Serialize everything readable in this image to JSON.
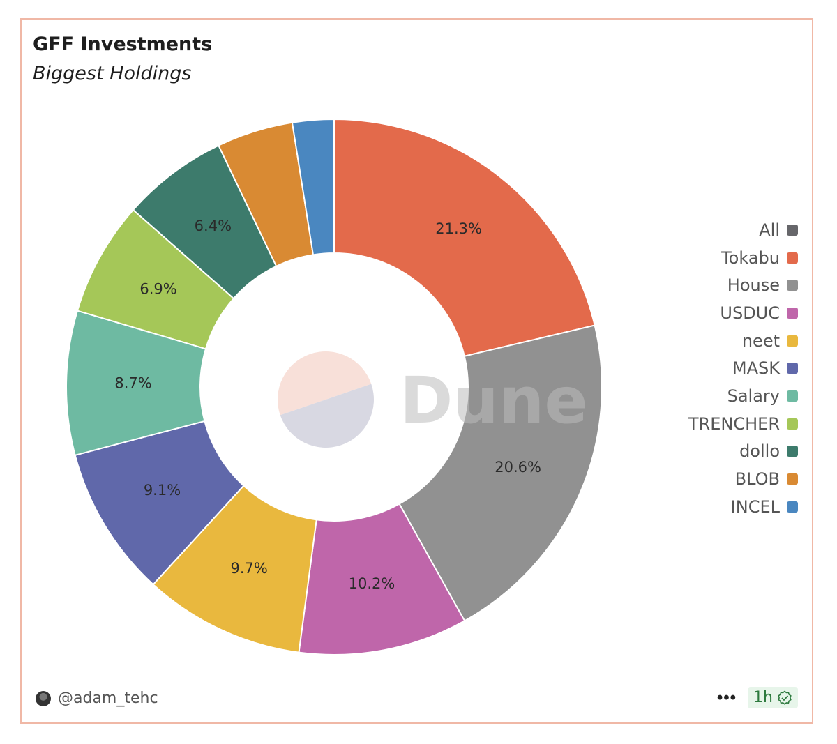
{
  "header": {
    "title": "GFF Investments",
    "subtitle": "Biggest Holdings"
  },
  "watermark": "Dune",
  "chart_data": {
    "type": "pie",
    "donut": true,
    "title": "GFF Investments",
    "subtitle": "Biggest Holdings",
    "legend_position": "right",
    "slices": [
      {
        "label": "Tokabu",
        "value": 21.3,
        "color": "#e36a4b",
        "shown_label": "21.3%"
      },
      {
        "label": "House",
        "value": 20.6,
        "color": "#919191",
        "shown_label": "20.6%"
      },
      {
        "label": "USDUC",
        "value": 10.2,
        "color": "#bf66aa",
        "shown_label": "10.2%"
      },
      {
        "label": "neet",
        "value": 9.7,
        "color": "#e9b83e",
        "shown_label": "9.7%"
      },
      {
        "label": "MASK",
        "value": 9.1,
        "color": "#6068aa",
        "shown_label": "9.1%"
      },
      {
        "label": "Salary",
        "value": 8.7,
        "color": "#6ebaa2",
        "shown_label": "8.7%"
      },
      {
        "label": "TRENCHER",
        "value": 6.9,
        "color": "#a5c758",
        "shown_label": "6.9%"
      },
      {
        "label": "dollo",
        "value": 6.4,
        "color": "#3d7b6c",
        "shown_label": "6.4%"
      },
      {
        "label": "BLOB",
        "value": 4.6,
        "color": "#d98a33",
        "shown_label": ""
      },
      {
        "label": "INCEL",
        "value": 2.5,
        "color": "#4a87c0",
        "shown_label": ""
      }
    ]
  },
  "legend": [
    {
      "label": "All",
      "color": "#66666a"
    },
    {
      "label": "Tokabu",
      "color": "#e36a4b"
    },
    {
      "label": "House",
      "color": "#919191"
    },
    {
      "label": "USDUC",
      "color": "#bf66aa"
    },
    {
      "label": "neet",
      "color": "#e9b83e"
    },
    {
      "label": "MASK",
      "color": "#6068aa"
    },
    {
      "label": "Salary",
      "color": "#6ebaa2"
    },
    {
      "label": "TRENCHER",
      "color": "#a5c758"
    },
    {
      "label": "dollo",
      "color": "#3d7b6c"
    },
    {
      "label": "BLOB",
      "color": "#d98a33"
    },
    {
      "label": "INCEL",
      "color": "#4a87c0"
    }
  ],
  "footer": {
    "username": "@adam_tehc",
    "more_label": "•••",
    "refresh_badge": "1h"
  }
}
